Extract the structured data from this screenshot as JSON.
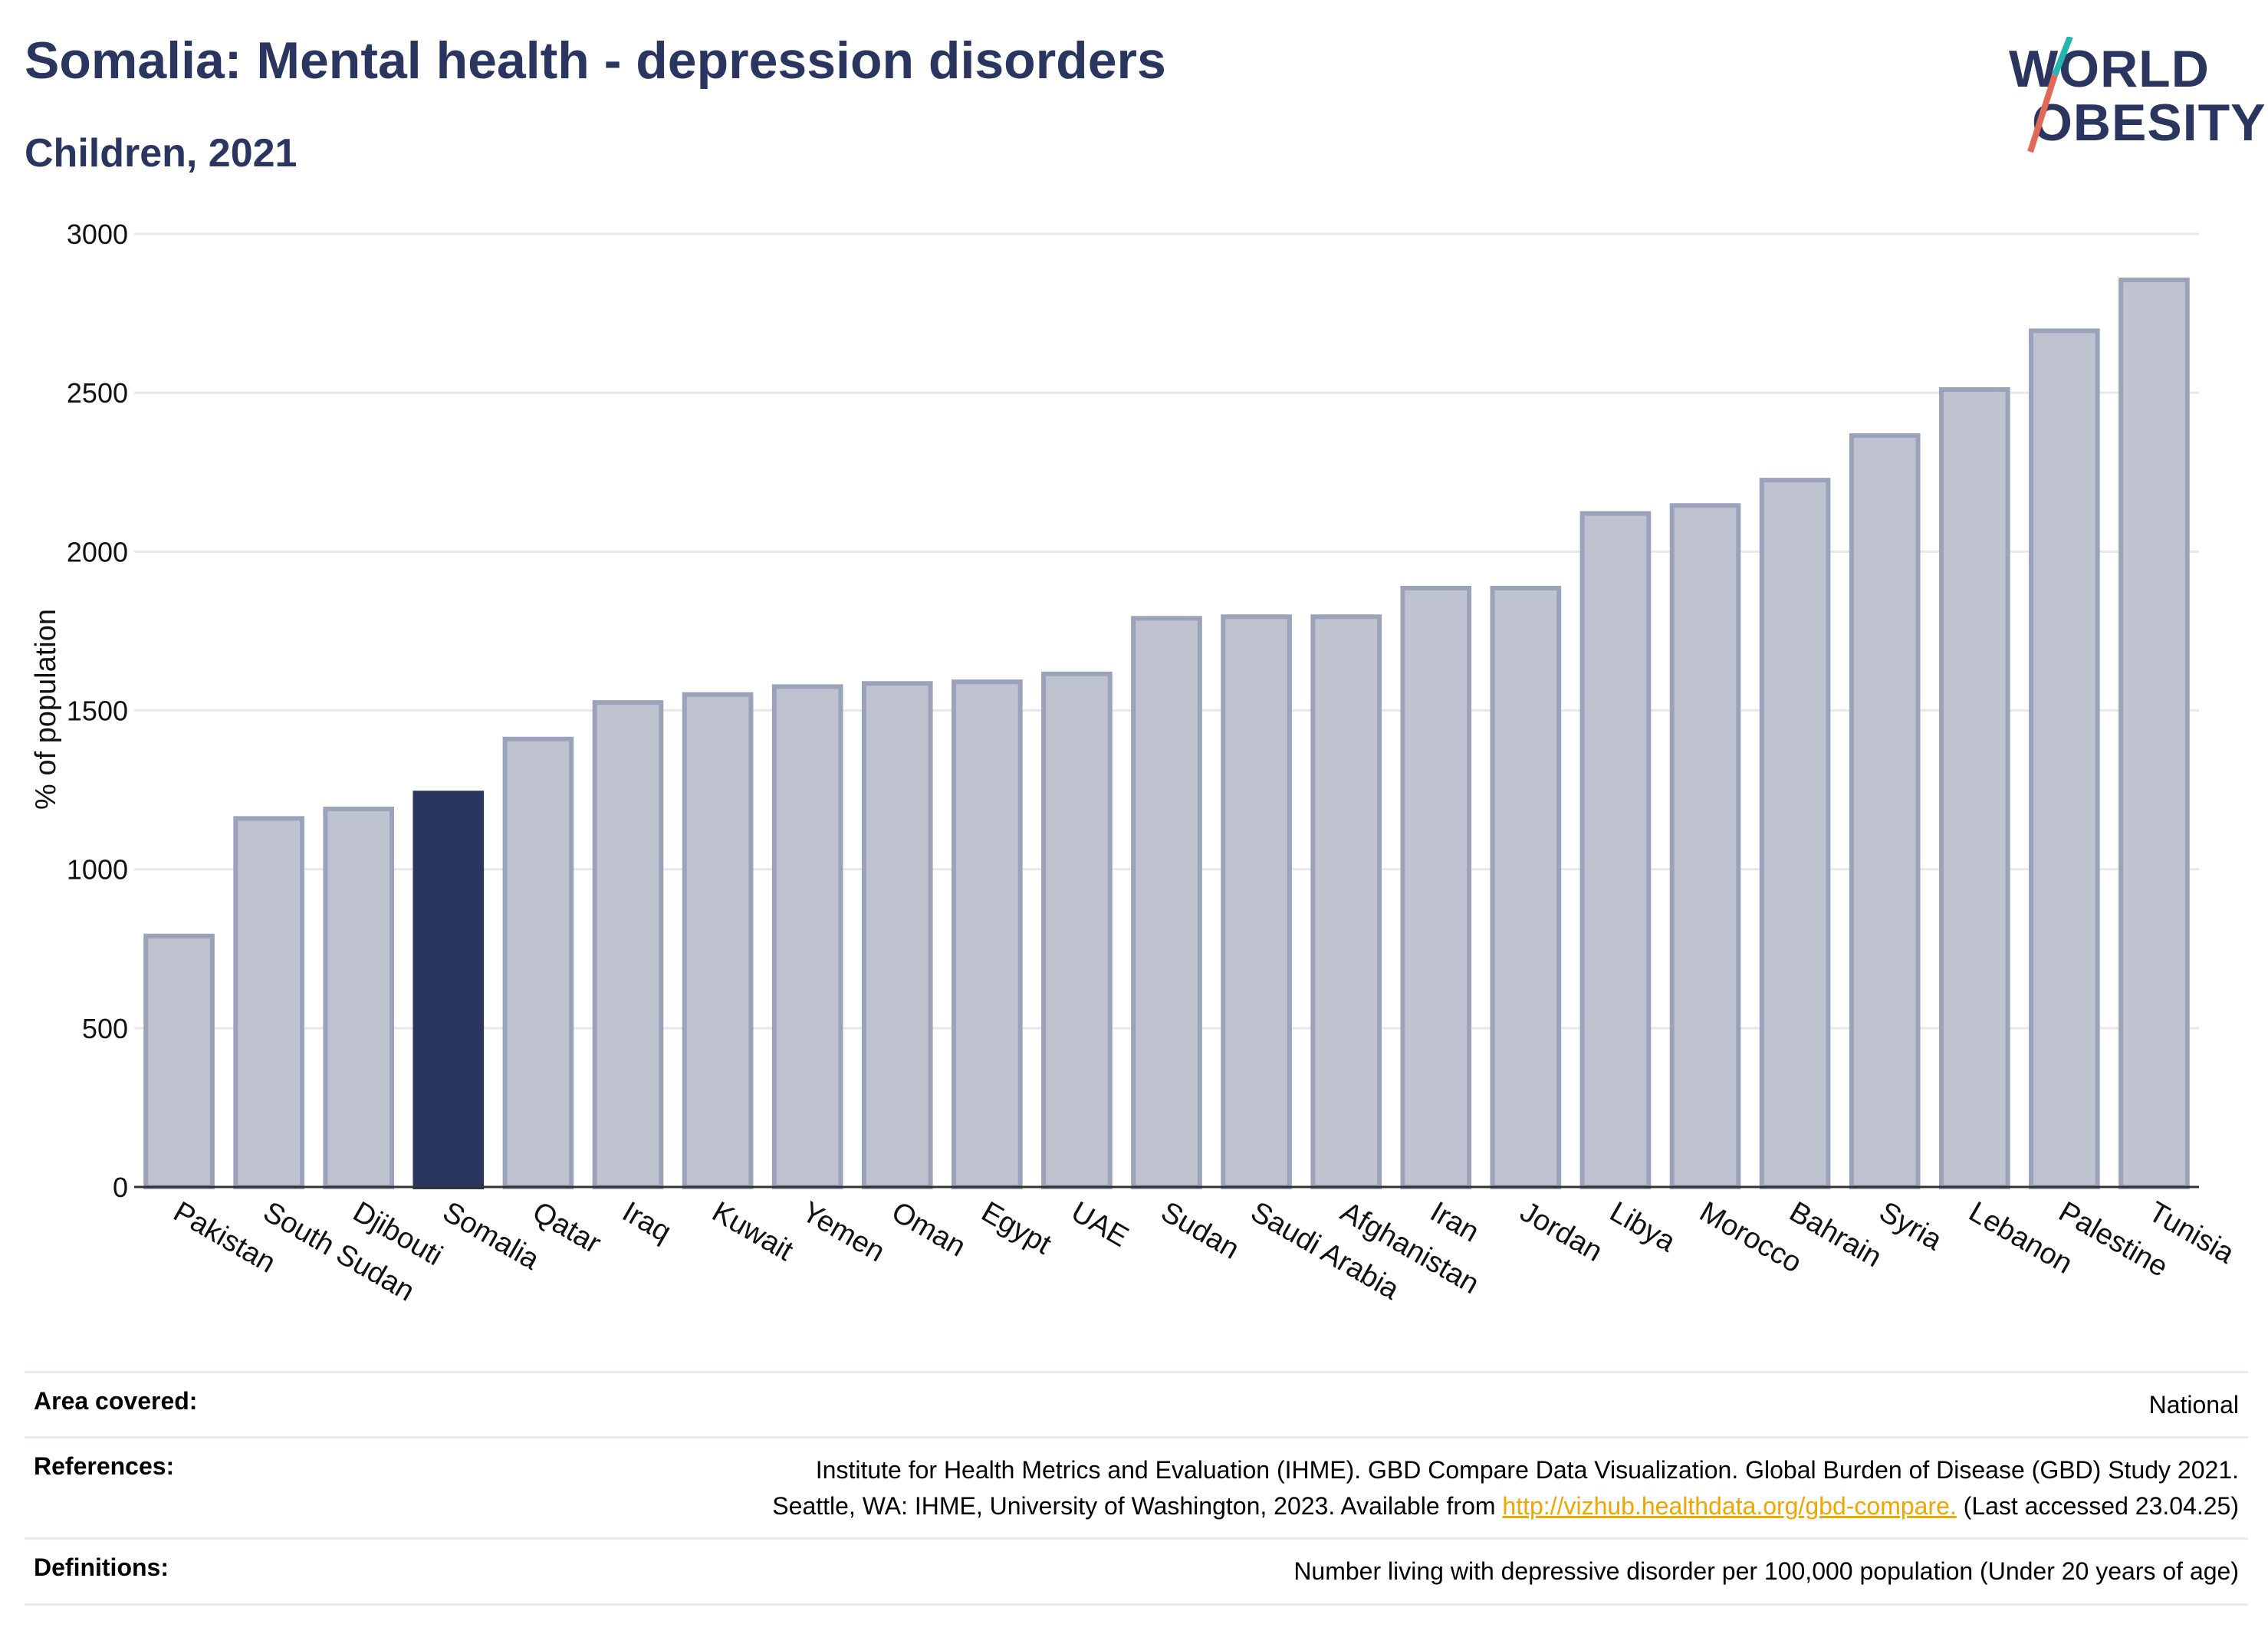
{
  "header": {
    "title": "Somalia: Mental health - depression disorders",
    "subtitle": "Children, 2021",
    "logo_line1": "WORLD",
    "logo_line2": "OBESITY"
  },
  "chart_data": {
    "type": "bar",
    "ylabel": "% of population",
    "xlabel": "",
    "ylim": [
      0,
      3000
    ],
    "yticks": [
      "0",
      "500",
      "1000",
      "1500",
      "2000",
      "2500",
      "3000"
    ],
    "grid": true,
    "highlight": "Somalia",
    "categories": [
      "Pakistan",
      "South Sudan",
      "Djibouti",
      "Somalia",
      "Qatar",
      "Iraq",
      "Kuwait",
      "Yemen",
      "Oman",
      "Egypt",
      "UAE",
      "Sudan",
      "Saudi Arabia",
      "Afghanistan",
      "Iran",
      "Jordan",
      "Libya",
      "Morocco",
      "Bahrain",
      "Syria",
      "Lebanon",
      "Palestine",
      "Tunisia"
    ],
    "values": [
      790,
      1160,
      1190,
      1240,
      1410,
      1525,
      1550,
      1575,
      1585,
      1590,
      1615,
      1790,
      1795,
      1795,
      1885,
      1885,
      2120,
      2145,
      2225,
      2365,
      2510,
      2695,
      2855
    ],
    "colors": {
      "bar": "#bfc3d0",
      "bar_edge": "#9ba3bb",
      "highlight": "#2a3560",
      "grid": "#e6e8ee"
    }
  },
  "footer": {
    "area_label": "Area covered:",
    "area_value": "National",
    "references_label": "References:",
    "references_line1": "Institute for Health Metrics and Evaluation (IHME). GBD Compare Data Visualization. Global Burden of Disease (GBD) Study 2021.",
    "references_line2_pre": "Seattle, WA: IHME, University of Washington, 2023. Available from",
    "references_link": "http://vizhub.healthdata.org/gbd-compare.",
    "references_line2_post": "(Last accessed 23.04.25)",
    "definitions_label": "Definitions:",
    "definitions_value": "Number living with depressive disorder per 100,000 population (Under 20 years of age)"
  }
}
